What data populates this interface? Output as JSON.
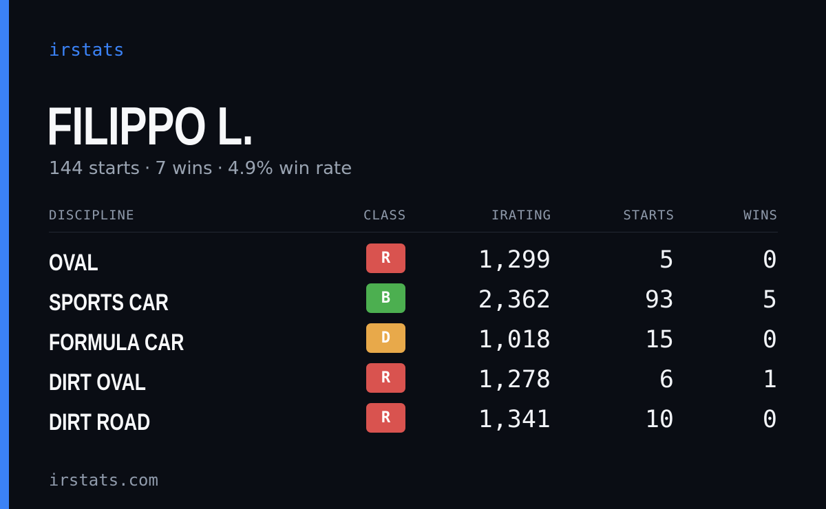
{
  "brand": "irstats",
  "driver": {
    "name": "FILIPPO L.",
    "starts_text": "144 starts",
    "wins_text": "7 wins",
    "win_rate_text": "4.9% win rate",
    "separator": "·"
  },
  "table": {
    "headers": {
      "discipline": "DISCIPLINE",
      "class": "CLASS",
      "irating": "IRATING",
      "starts": "STARTS",
      "wins": "WINS"
    },
    "rows": [
      {
        "discipline": "OVAL",
        "class": "R",
        "class_color": "#d9534f",
        "irating": "1,299",
        "starts": "5",
        "wins": "0"
      },
      {
        "discipline": "SPORTS CAR",
        "class": "B",
        "class_color": "#4caf50",
        "irating": "2,362",
        "starts": "93",
        "wins": "5"
      },
      {
        "discipline": "FORMULA CAR",
        "class": "D",
        "class_color": "#e8a94a",
        "irating": "1,018",
        "starts": "15",
        "wins": "0"
      },
      {
        "discipline": "DIRT OVAL",
        "class": "R",
        "class_color": "#d9534f",
        "irating": "1,278",
        "starts": "6",
        "wins": "1"
      },
      {
        "discipline": "DIRT ROAD",
        "class": "R",
        "class_color": "#d9534f",
        "irating": "1,341",
        "starts": "10",
        "wins": "0"
      }
    ]
  },
  "footer": "irstats.com",
  "colors": {
    "accent": "#3b82f6",
    "background": "#0a0d14",
    "muted_text": "#9aa4b2"
  }
}
